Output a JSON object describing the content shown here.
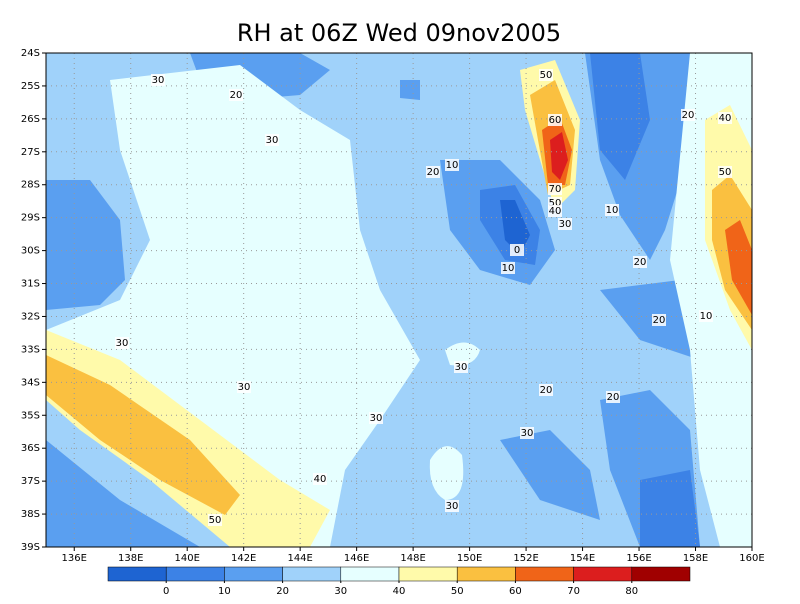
{
  "chart_data": {
    "type": "contour",
    "title": "RH at 06Z Wed 09nov2005",
    "xlim": [
      135,
      160
    ],
    "ylim": [
      -39,
      -24
    ],
    "xticks": [
      {
        "value": 136,
        "label": "136E"
      },
      {
        "value": 138,
        "label": "138E"
      },
      {
        "value": 140,
        "label": "140E"
      },
      {
        "value": 142,
        "label": "142E"
      },
      {
        "value": 144,
        "label": "144E"
      },
      {
        "value": 146,
        "label": "146E"
      },
      {
        "value": 148,
        "label": "148E"
      },
      {
        "value": 150,
        "label": "150E"
      },
      {
        "value": 152,
        "label": "152E"
      },
      {
        "value": 154,
        "label": "154E"
      },
      {
        "value": 156,
        "label": "156E"
      },
      {
        "value": 158,
        "label": "158E"
      },
      {
        "value": 160,
        "label": "160E"
      }
    ],
    "yticks": [
      {
        "value": -24,
        "label": "24S"
      },
      {
        "value": -25,
        "label": "25S"
      },
      {
        "value": -26,
        "label": "26S"
      },
      {
        "value": -27,
        "label": "27S"
      },
      {
        "value": -28,
        "label": "28S"
      },
      {
        "value": -29,
        "label": "29S"
      },
      {
        "value": -30,
        "label": "30S"
      },
      {
        "value": -31,
        "label": "31S"
      },
      {
        "value": -32,
        "label": "32S"
      },
      {
        "value": -33,
        "label": "33S"
      },
      {
        "value": -34,
        "label": "34S"
      },
      {
        "value": -35,
        "label": "35S"
      },
      {
        "value": -36,
        "label": "36S"
      },
      {
        "value": -37,
        "label": "37S"
      },
      {
        "value": -38,
        "label": "38S"
      },
      {
        "value": -39,
        "label": "39S"
      }
    ],
    "grid": true,
    "colorbar": {
      "levels": [
        0,
        10,
        20,
        30,
        40,
        50,
        60,
        70,
        80
      ],
      "colors": [
        "#1e64d2",
        "#3c82e6",
        "#5a9ff0",
        "#a0d2fa",
        "#e6ffff",
        "#fffaaa",
        "#fac040",
        "#f06418",
        "#dc1e1e",
        "#a00000"
      ]
    },
    "contour_labels": [
      30,
      20,
      30,
      20,
      10,
      50,
      60,
      70,
      50,
      40,
      30,
      0,
      10,
      10,
      20,
      40,
      50,
      20,
      10,
      30,
      30,
      30,
      30,
      20,
      20,
      30,
      40,
      50,
      30,
      20
    ]
  }
}
